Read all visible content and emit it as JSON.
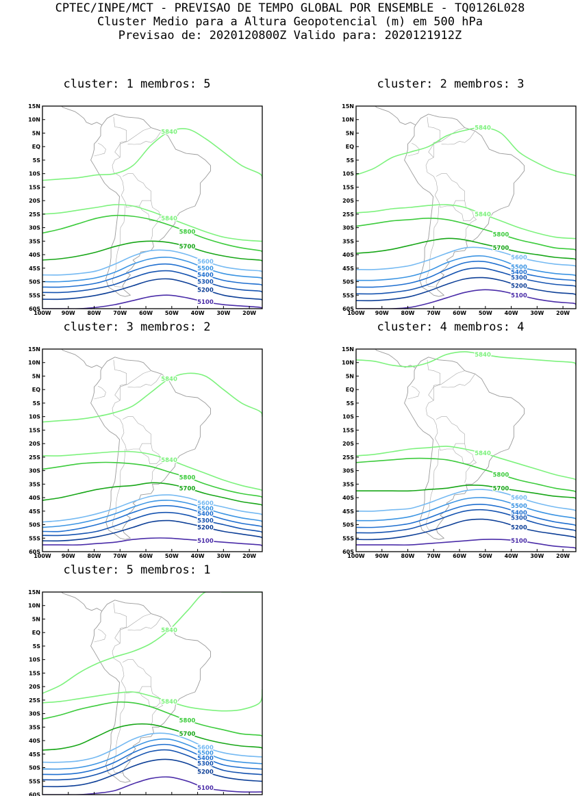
{
  "header": {
    "line1": "CPTEC/INPE/MCT - PREVISAO DE TEMPO GLOBAL POR ENSEMBLE - TQ0126L028",
    "line2": "Cluster Medio para a Altura Geopotencial (m) em 500 hPa",
    "line3": "Previsao de: 2020120800Z   Valido para: 2020121912Z"
  },
  "colors": {
    "5840": "#7df27d",
    "5800": "#3ccb3c",
    "5700": "#17a617",
    "5600": "#74b9f2",
    "5500": "#3b94e3",
    "5400": "#1f6fd0",
    "5300": "#1553b0",
    "5200": "#0d3f97",
    "5100": "#4a2ca8",
    "5000": "#5b2ab8"
  },
  "axes": {
    "lon_range": [
      -100,
      -15
    ],
    "lat_range": [
      -60,
      15
    ],
    "lat_ticks": [
      "15N",
      "10N",
      "5N",
      "EQ",
      "5S",
      "10S",
      "15S",
      "20S",
      "25S",
      "30S",
      "35S",
      "40S",
      "45S",
      "50S",
      "55S",
      "60S"
    ],
    "lon_ticks": [
      "100W",
      "90W",
      "80W",
      "70W",
      "60W",
      "50W",
      "40W",
      "30W",
      "20W"
    ]
  },
  "panels": [
    {
      "title": "cluster: 1   membros: 5",
      "contours": [
        {
          "level": 5840,
          "lat": [
            -12.5,
            -12.0,
            -11.5,
            -10.5,
            -10.0,
            -7.0,
            0.5,
            5.5,
            6.5,
            3.0,
            -2.0,
            -7.0,
            -10.0,
            -12.0
          ]
        },
        {
          "level": 5840,
          "lat": [
            -25.0,
            -24.5,
            -23.5,
            -22.5,
            -21.5,
            -22.0,
            -24.0,
            -26.5,
            -29.0,
            -31.5,
            -33.5,
            -34.5,
            -35.0,
            -35.0
          ]
        },
        {
          "level": 5800,
          "lat": [
            -32.0,
            -30.5,
            -28.5,
            -26.5,
            -25.5,
            -25.8,
            -27.0,
            -29.0,
            -31.5,
            -34.0,
            -36.0,
            -37.5,
            -38.5,
            -39.0
          ]
        },
        {
          "level": 5700,
          "lat": [
            -42.0,
            -41.5,
            -40.5,
            -39.0,
            -37.0,
            -35.5,
            -35.0,
            -35.5,
            -37.0,
            -39.0,
            -40.5,
            -41.5,
            -42.0,
            -42.5
          ]
        },
        {
          "level": 5600,
          "lat": [
            -47.5,
            -47.5,
            -47.0,
            -46.0,
            -43.5,
            -40.5,
            -38.5,
            -38.5,
            -40.0,
            -42.5,
            -44.5,
            -45.5,
            -46.0,
            -46.5
          ]
        },
        {
          "level": 5500,
          "lat": [
            -50.0,
            -50.0,
            -49.5,
            -48.5,
            -46.5,
            -43.5,
            -41.5,
            -41.0,
            -42.5,
            -45.0,
            -47.0,
            -48.0,
            -48.5,
            -49.0
          ]
        },
        {
          "level": 5400,
          "lat": [
            -52.0,
            -52.0,
            -51.5,
            -50.5,
            -48.5,
            -46.0,
            -44.0,
            -43.5,
            -45.0,
            -47.5,
            -49.5,
            -50.5,
            -51.0,
            -51.5
          ]
        },
        {
          "level": 5300,
          "lat": [
            -54.0,
            -54.0,
            -53.5,
            -52.5,
            -51.0,
            -48.5,
            -46.5,
            -46.0,
            -47.5,
            -50.0,
            -52.0,
            -53.0,
            -53.5,
            -54.0
          ]
        },
        {
          "level": 5200,
          "lat": [
            -56.5,
            -56.5,
            -56.0,
            -55.0,
            -53.5,
            -51.5,
            -49.5,
            -49.0,
            -50.5,
            -53.0,
            -55.0,
            -56.0,
            -56.5,
            -56.8
          ]
        },
        {
          "level": 5100,
          "lat": [
            -60.0,
            -60.0,
            -60.0,
            -59.5,
            -58.5,
            -57.0,
            -55.5,
            -55.0,
            -56.0,
            -57.5,
            -58.5,
            -59.0,
            -59.5,
            -60.0
          ]
        }
      ]
    },
    {
      "title": "cluster: 2   membros: 3",
      "contours": [
        {
          "level": 5840,
          "lat": [
            -10.5,
            -8.0,
            -4.0,
            -2.0,
            0.0,
            4.0,
            6.0,
            7.0,
            5.0,
            -2.0,
            -6.0,
            -9.0,
            -10.5,
            -11.0
          ]
        },
        {
          "level": 5840,
          "lat": [
            -24.5,
            -24.0,
            -23.0,
            -22.5,
            -21.8,
            -21.5,
            -22.5,
            -25.0,
            -27.5,
            -30.0,
            -32.0,
            -33.5,
            -34.0,
            -34.0
          ]
        },
        {
          "level": 5800,
          "lat": [
            -29.5,
            -28.5,
            -27.5,
            -27.0,
            -26.5,
            -27.0,
            -28.5,
            -30.5,
            -32.5,
            -34.5,
            -36.0,
            -37.5,
            -38.0,
            -38.5
          ]
        },
        {
          "level": 5700,
          "lat": [
            -39.5,
            -39.0,
            -38.0,
            -36.5,
            -35.0,
            -34.0,
            -34.5,
            -36.0,
            -37.5,
            -39.0,
            -40.0,
            -41.0,
            -41.5,
            -42.0
          ]
        },
        {
          "level": 5600,
          "lat": [
            -45.5,
            -45.5,
            -45.0,
            -44.0,
            -42.0,
            -39.5,
            -37.5,
            -37.5,
            -39.0,
            -41.0,
            -42.5,
            -43.5,
            -44.0,
            -44.5
          ]
        },
        {
          "level": 5500,
          "lat": [
            -49.5,
            -49.5,
            -49.0,
            -48.0,
            -46.0,
            -43.0,
            -41.0,
            -40.5,
            -42.0,
            -44.5,
            -46.0,
            -47.0,
            -47.5,
            -48.0
          ]
        },
        {
          "level": 5400,
          "lat": [
            -52.0,
            -52.0,
            -51.5,
            -50.5,
            -48.5,
            -45.5,
            -43.0,
            -42.5,
            -44.0,
            -46.5,
            -48.0,
            -49.0,
            -49.5,
            -50.0
          ]
        },
        {
          "level": 5300,
          "lat": [
            -54.5,
            -54.5,
            -54.0,
            -53.0,
            -51.0,
            -48.0,
            -45.5,
            -45.0,
            -46.5,
            -48.5,
            -50.0,
            -51.0,
            -51.5,
            -52.0
          ]
        },
        {
          "level": 5200,
          "lat": [
            -57.0,
            -57.0,
            -56.5,
            -55.5,
            -53.5,
            -51.0,
            -49.0,
            -48.5,
            -49.5,
            -51.5,
            -53.0,
            -54.0,
            -54.5,
            -55.0
          ]
        },
        {
          "level": 5100,
          "lat": [
            -60.0,
            -60.0,
            -60.0,
            -59.5,
            -58.0,
            -56.0,
            -54.0,
            -53.0,
            -53.5,
            -55.0,
            -56.5,
            -57.5,
            -58.0,
            -58.5
          ]
        }
      ]
    },
    {
      "title": "cluster: 3   membros: 2",
      "contours": [
        {
          "level": 5840,
          "lat": [
            -12.0,
            -11.5,
            -11.0,
            -10.0,
            -8.5,
            -6.0,
            -1.0,
            4.0,
            6.0,
            5.0,
            0.0,
            -5.0,
            -8.0,
            -10.0
          ]
        },
        {
          "level": 5840,
          "lat": [
            -24.5,
            -24.5,
            -24.0,
            -23.5,
            -23.0,
            -23.0,
            -24.0,
            -26.0,
            -28.5,
            -31.0,
            -33.5,
            -35.5,
            -37.0,
            -37.5
          ]
        },
        {
          "level": 5800,
          "lat": [
            -29.5,
            -28.5,
            -27.5,
            -27.0,
            -27.0,
            -27.5,
            -28.5,
            -30.5,
            -32.5,
            -35.0,
            -37.0,
            -38.5,
            -39.5,
            -40.0
          ]
        },
        {
          "level": 5700,
          "lat": [
            -41.0,
            -40.0,
            -38.5,
            -37.0,
            -36.0,
            -35.5,
            -34.5,
            -35.0,
            -36.5,
            -38.5,
            -40.0,
            -41.5,
            -42.5,
            -43.0
          ]
        },
        {
          "level": 5600,
          "lat": [
            -49.0,
            -48.5,
            -47.5,
            -46.0,
            -44.0,
            -41.5,
            -39.5,
            -39.0,
            -40.0,
            -42.0,
            -43.5,
            -45.0,
            -46.0,
            -46.5
          ]
        },
        {
          "level": 5500,
          "lat": [
            -51.0,
            -50.5,
            -49.5,
            -48.0,
            -46.0,
            -43.5,
            -41.5,
            -41.0,
            -42.0,
            -44.0,
            -46.0,
            -47.5,
            -48.5,
            -49.0
          ]
        },
        {
          "level": 5400,
          "lat": [
            -52.5,
            -52.5,
            -51.5,
            -50.0,
            -48.0,
            -45.5,
            -43.5,
            -43.0,
            -44.0,
            -46.0,
            -48.0,
            -49.5,
            -50.5,
            -51.0
          ]
        },
        {
          "level": 5300,
          "lat": [
            -54.0,
            -54.0,
            -53.5,
            -52.5,
            -50.5,
            -48.0,
            -46.0,
            -45.5,
            -46.5,
            -48.5,
            -50.0,
            -51.5,
            -52.5,
            -53.0
          ]
        },
        {
          "level": 5200,
          "lat": [
            -56.0,
            -56.0,
            -55.5,
            -54.5,
            -53.0,
            -51.0,
            -49.0,
            -48.5,
            -49.5,
            -51.0,
            -52.5,
            -53.5,
            -54.5,
            -55.0
          ]
        },
        {
          "level": 5100,
          "lat": [
            -57.5,
            -57.5,
            -57.5,
            -57.0,
            -56.5,
            -55.5,
            -55.0,
            -55.0,
            -55.5,
            -56.0,
            -56.5,
            -57.0,
            -57.5,
            -58.0
          ]
        }
      ]
    },
    {
      "title": "cluster: 4   membros: 4",
      "contours": [
        {
          "level": 5840,
          "lat": [
            11.0,
            10.5,
            9.0,
            8.5,
            10.0,
            13.0,
            14.0,
            13.0,
            12.0,
            11.5,
            11.0,
            10.5,
            10.0,
            9.0
          ]
        },
        {
          "level": 5840,
          "lat": [
            -24.5,
            -24.0,
            -23.0,
            -22.0,
            -21.5,
            -21.0,
            -22.0,
            -23.5,
            -25.5,
            -27.5,
            -29.5,
            -31.5,
            -33.0,
            -33.5
          ]
        },
        {
          "level": 5800,
          "lat": [
            -27.0,
            -26.5,
            -26.0,
            -25.5,
            -25.5,
            -26.0,
            -27.5,
            -29.5,
            -31.5,
            -33.5,
            -35.0,
            -36.5,
            -37.5,
            -38.0
          ]
        },
        {
          "level": 5700,
          "lat": [
            -37.5,
            -37.5,
            -37.5,
            -37.5,
            -37.0,
            -36.5,
            -35.5,
            -35.5,
            -36.5,
            -37.5,
            -38.5,
            -39.5,
            -40.0,
            -40.5
          ]
        },
        {
          "level": 5600,
          "lat": [
            -45.0,
            -45.0,
            -44.5,
            -44.0,
            -42.0,
            -39.5,
            -37.5,
            -37.0,
            -38.0,
            -40.0,
            -42.0,
            -43.5,
            -44.5,
            -45.0
          ]
        },
        {
          "level": 5500,
          "lat": [
            -48.5,
            -48.5,
            -48.0,
            -47.0,
            -45.0,
            -42.5,
            -40.5,
            -40.0,
            -41.0,
            -43.0,
            -45.0,
            -46.5,
            -47.5,
            -48.0
          ]
        },
        {
          "level": 5400,
          "lat": [
            -51.0,
            -51.0,
            -50.5,
            -49.5,
            -47.5,
            -45.0,
            -43.0,
            -42.5,
            -43.5,
            -45.5,
            -47.5,
            -49.0,
            -50.0,
            -50.5
          ]
        },
        {
          "level": 5300,
          "lat": [
            -53.0,
            -53.0,
            -52.5,
            -51.5,
            -49.5,
            -47.0,
            -45.0,
            -44.5,
            -45.5,
            -47.5,
            -49.5,
            -51.0,
            -52.0,
            -52.5
          ]
        },
        {
          "level": 5200,
          "lat": [
            -55.5,
            -55.5,
            -55.0,
            -54.0,
            -52.5,
            -50.5,
            -48.5,
            -48.0,
            -49.0,
            -51.0,
            -52.5,
            -53.5,
            -54.5,
            -55.0
          ]
        },
        {
          "level": 5100,
          "lat": [
            -57.5,
            -57.5,
            -57.5,
            -57.5,
            -57.0,
            -56.5,
            -56.0,
            -55.5,
            -55.5,
            -56.0,
            -57.0,
            -58.0,
            -58.5,
            -59.0
          ]
        }
      ]
    },
    {
      "title": "cluster: 5   membros: 1",
      "contours": [
        {
          "level": 5840,
          "lat": [
            -22.5,
            -19.5,
            -15.0,
            -11.5,
            -9.0,
            -7.0,
            -4.0,
            1.0,
            8.0,
            15.0,
            15.0,
            15.0,
            15.0,
            15.0
          ]
        },
        {
          "level": 5840,
          "lat": [
            -26.0,
            -25.5,
            -24.5,
            -23.5,
            -22.5,
            -22.0,
            -23.5,
            -25.5,
            -27.5,
            -28.5,
            -29.0,
            -28.5,
            -26.0,
            -21.0
          ]
        },
        {
          "level": 5800,
          "lat": [
            -32.0,
            -30.5,
            -28.5,
            -27.0,
            -25.8,
            -26.0,
            -27.5,
            -30.0,
            -32.5,
            -34.5,
            -36.0,
            -37.5,
            -38.0,
            -38.5
          ]
        },
        {
          "level": 5700,
          "lat": [
            -43.5,
            -43.0,
            -41.5,
            -38.5,
            -35.5,
            -34.0,
            -34.0,
            -35.5,
            -37.5,
            -39.5,
            -41.0,
            -42.0,
            -42.5,
            -43.0
          ]
        },
        {
          "level": 5600,
          "lat": [
            -48.0,
            -48.0,
            -47.5,
            -46.0,
            -43.0,
            -39.5,
            -37.5,
            -37.5,
            -39.5,
            -42.5,
            -44.5,
            -45.5,
            -46.0,
            -46.0
          ]
        },
        {
          "level": 5500,
          "lat": [
            -50.5,
            -50.5,
            -50.0,
            -48.5,
            -46.0,
            -42.5,
            -40.0,
            -39.5,
            -41.5,
            -44.5,
            -47.0,
            -48.0,
            -48.5,
            -48.5
          ]
        },
        {
          "level": 5400,
          "lat": [
            -52.5,
            -52.5,
            -52.0,
            -50.5,
            -48.0,
            -44.5,
            -42.0,
            -41.5,
            -43.5,
            -46.5,
            -49.0,
            -50.0,
            -50.5,
            -50.5
          ]
        },
        {
          "level": 5300,
          "lat": [
            -54.5,
            -54.5,
            -54.0,
            -52.5,
            -50.0,
            -46.5,
            -44.0,
            -43.5,
            -45.5,
            -48.5,
            -51.0,
            -52.0,
            -52.5,
            -52.5
          ]
        },
        {
          "level": 5200,
          "lat": [
            -57.0,
            -57.0,
            -56.5,
            -55.0,
            -52.5,
            -49.5,
            -47.5,
            -47.0,
            -48.5,
            -51.5,
            -53.5,
            -54.5,
            -55.0,
            -55.0
          ]
        },
        {
          "level": 5100,
          "lat": [
            -60.0,
            -60.0,
            -60.0,
            -59.5,
            -58.5,
            -56.0,
            -54.0,
            -53.5,
            -55.0,
            -57.5,
            -58.5,
            -59.0,
            -59.0,
            -59.0
          ]
        }
      ]
    }
  ]
}
